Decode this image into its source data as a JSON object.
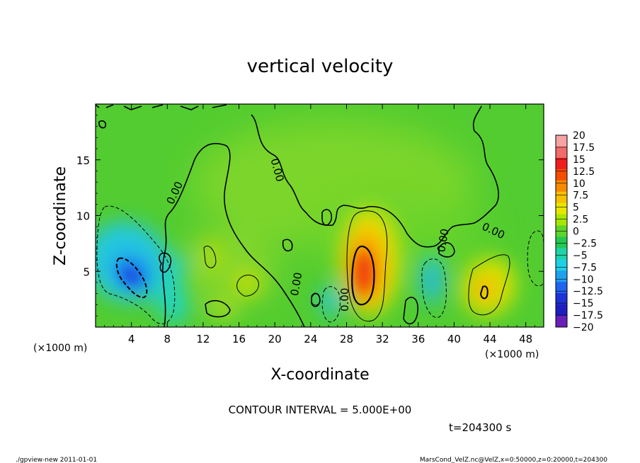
{
  "chart_data": {
    "type": "heatmap",
    "title": "vertical velocity",
    "xlabel": "X-coordinate",
    "ylabel": "Z-coordinate",
    "x_unit": "(×1000 m)",
    "z_unit": "(×1000 m)",
    "xlim": [
      0,
      50
    ],
    "ylim": [
      0,
      20
    ],
    "x_ticks": [
      "4",
      "8",
      "12",
      "16",
      "20",
      "24",
      "28",
      "32",
      "36",
      "40",
      "44",
      "48"
    ],
    "y_ticks": [
      "5",
      "10",
      "15"
    ],
    "contour_interval_text": "CONTOUR INTERVAL = 5.000E+00",
    "time_text": "t=204300 s",
    "contour_label": "0.00",
    "colorbar_levels": [
      "20",
      "17.5",
      "15",
      "12.5",
      "10",
      "7.5",
      "5",
      "2.5",
      "0",
      "−2.5",
      "−5",
      "−7.5",
      "−10",
      "−12.5",
      "−15",
      "−17.5",
      "−20"
    ],
    "colorbar_colors": [
      "#f5a3a3",
      "#f06b6b",
      "#f01e1e",
      "#f54d00",
      "#f78a00",
      "#f7c000",
      "#e8e600",
      "#a8e600",
      "#5ed42a",
      "#24c850",
      "#1ed4a8",
      "#1ed0e6",
      "#1ea0f0",
      "#1e64f0",
      "#1e32d8",
      "#1e1ec0",
      "#6a1eb8"
    ],
    "features": [
      {
        "kind": "positive",
        "x": 29.7,
        "z": 5.0,
        "peak": 12.5
      },
      {
        "kind": "negative",
        "x": 4.0,
        "z": 5.5,
        "peak": -11
      },
      {
        "kind": "positive",
        "x": 43.5,
        "z": 3.2,
        "peak": 6
      },
      {
        "kind": "negative",
        "x": 26.0,
        "z": 2.2,
        "peak": -6
      },
      {
        "kind": "negative",
        "x": 37.8,
        "z": 4.5,
        "peak": -6
      },
      {
        "kind": "positive",
        "x": 16.5,
        "z": 4.5,
        "peak": 3
      },
      {
        "kind": "positive",
        "x": 12.5,
        "z": 6.5,
        "peak": 2.5
      },
      {
        "kind": "negative",
        "x": 9.5,
        "z": 5.5,
        "peak": -5
      }
    ]
  },
  "footer": {
    "left": "./gpview-new 2011-01-01",
    "right": "MarsCond_VelZ.nc@VelZ,x=0:50000,z=0:20000,t=204300"
  }
}
